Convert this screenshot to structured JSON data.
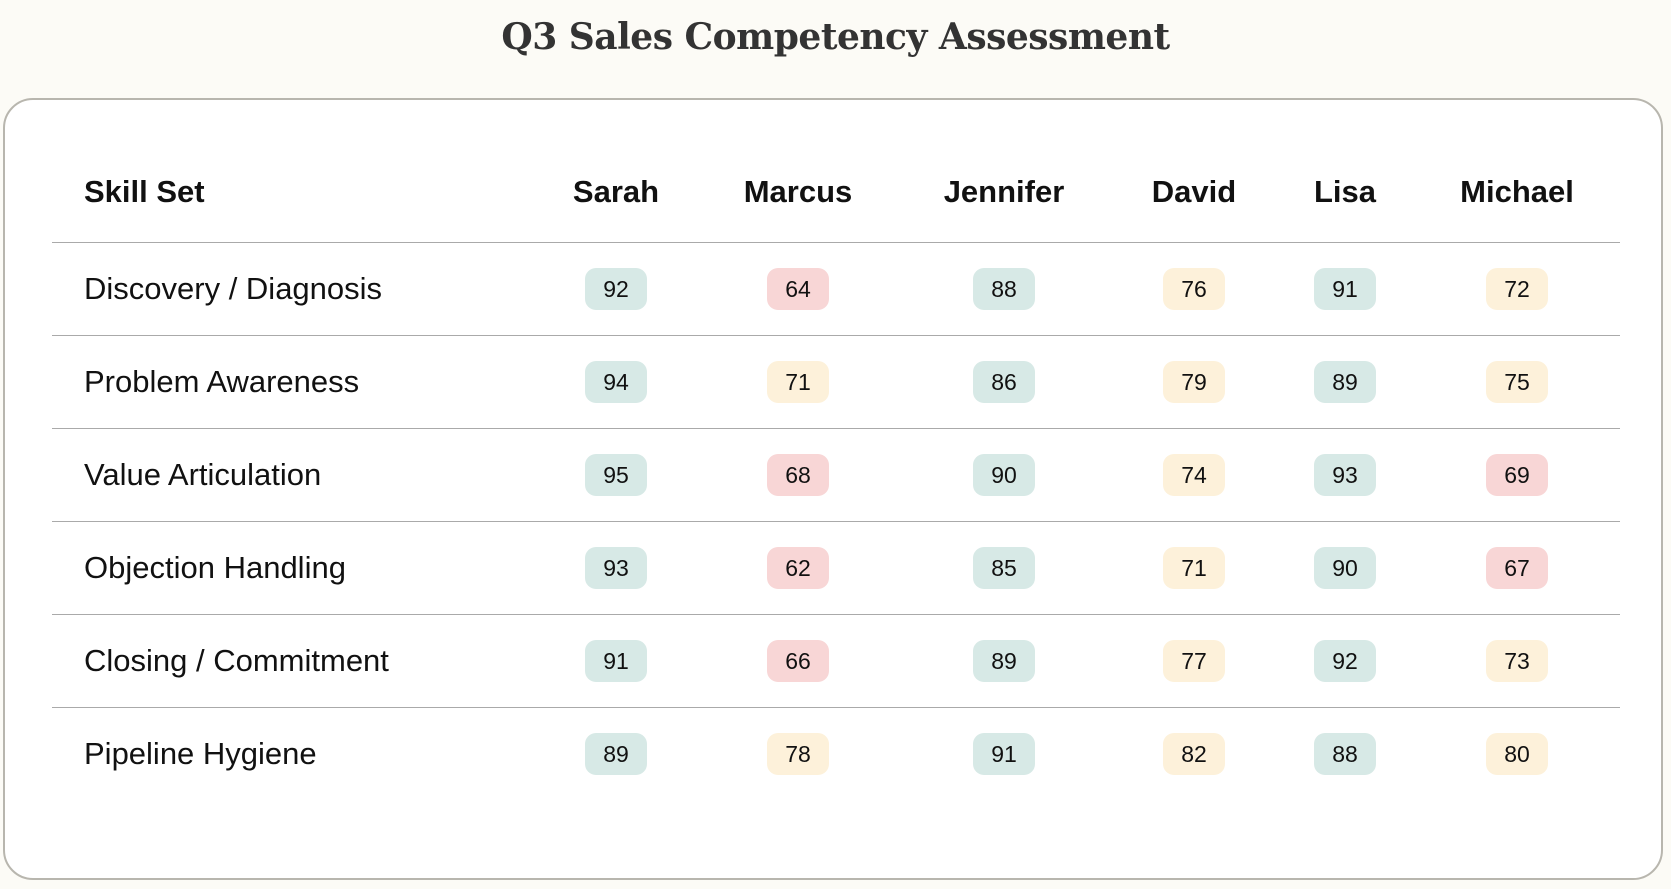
{
  "title": "Q3 Sales Competency Assessment",
  "colors": {
    "high": "#d7e9e6",
    "mid": "#fdf1da",
    "low": "#f8d6d6"
  },
  "table": {
    "headers": [
      "Skill Set",
      "Sarah",
      "Marcus",
      "Jennifer",
      "David",
      "Lisa",
      "Michael"
    ],
    "rows": [
      {
        "skill": "Discovery / Diagnosis",
        "scores": [
          92,
          64,
          88,
          76,
          91,
          72
        ]
      },
      {
        "skill": "Problem Awareness",
        "scores": [
          94,
          71,
          86,
          79,
          89,
          75
        ]
      },
      {
        "skill": "Value Articulation",
        "scores": [
          95,
          68,
          90,
          74,
          93,
          69
        ]
      },
      {
        "skill": "Objection Handling",
        "scores": [
          93,
          62,
          85,
          71,
          90,
          67
        ]
      },
      {
        "skill": "Closing / Commitment",
        "scores": [
          91,
          66,
          89,
          77,
          92,
          73
        ]
      },
      {
        "skill": "Pipeline Hygiene",
        "scores": [
          89,
          78,
          91,
          82,
          88,
          80
        ]
      }
    ]
  }
}
